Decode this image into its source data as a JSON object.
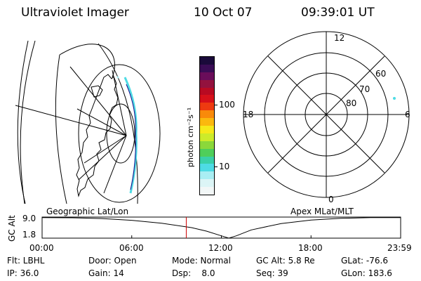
{
  "header": {
    "instrument": "Ultraviolet Imager",
    "date": "10 Oct 07",
    "time": "09:39:01 UT"
  },
  "colorbar": {
    "unit_label": "photon cm⁻²s⁻¹",
    "ticks": [
      "100",
      "10"
    ],
    "colors": [
      "#1a0a3a",
      "#3a0c55",
      "#6a0d5a",
      "#93123e",
      "#b80a22",
      "#d6101a",
      "#ee3a10",
      "#f98a0a",
      "#fbb80e",
      "#f6e91a",
      "#cdeb2a",
      "#8bd83a",
      "#4fce5a",
      "#3ad0a8",
      "#4edbe4",
      "#a9eef3",
      "#dcf5f6",
      "#f2f7f7"
    ]
  },
  "polar_plot": {
    "lat_labels": [
      "80",
      "70",
      "60"
    ],
    "mlt_labels": [
      "12",
      "18",
      "6",
      "0"
    ]
  },
  "timeline": {
    "left_title": "Geographic Lat/Lon",
    "right_title": "Apex MLat/MLT",
    "ylabel": "GC Alt",
    "y_ticks": [
      "9.0",
      "1.8"
    ],
    "x_ticks": [
      "00:00",
      "06:00",
      "12:00",
      "18:00",
      "23:59"
    ],
    "marker_color": "#cc0000"
  },
  "chart_data": {
    "type": "line",
    "title": "",
    "xlabel": "",
    "ylabel": "GC Alt",
    "x_ticks": [
      "00:00",
      "06:00",
      "12:00",
      "18:00",
      "23:59"
    ],
    "ylim": [
      1.8,
      9.0
    ],
    "series": [
      {
        "x": [
          0,
          2,
          4,
          6,
          8,
          10,
          11,
          12,
          12.5,
          13,
          14,
          16,
          18,
          20,
          22,
          23.98
        ],
        "y": [
          8.8,
          8.75,
          8.5,
          7.9,
          6.9,
          5.4,
          4.2,
          2.6,
          1.8,
          2.6,
          4.6,
          6.8,
          8.0,
          8.6,
          8.8,
          8.8
        ]
      }
    ],
    "current_time_marker": 9.65
  },
  "info": {
    "flt": "Flt: LBHL",
    "ip": "IP: 36.0",
    "door": "Door: Open",
    "gain": "Gain: 14",
    "mode": "Mode: Normal",
    "dsp": "Dsp:    8.0",
    "gcalt": "GC Alt: 5.8 Re",
    "seq": "Seq: 39",
    "glat": "GLat: -76.6",
    "glon": "GLon: 183.6"
  }
}
